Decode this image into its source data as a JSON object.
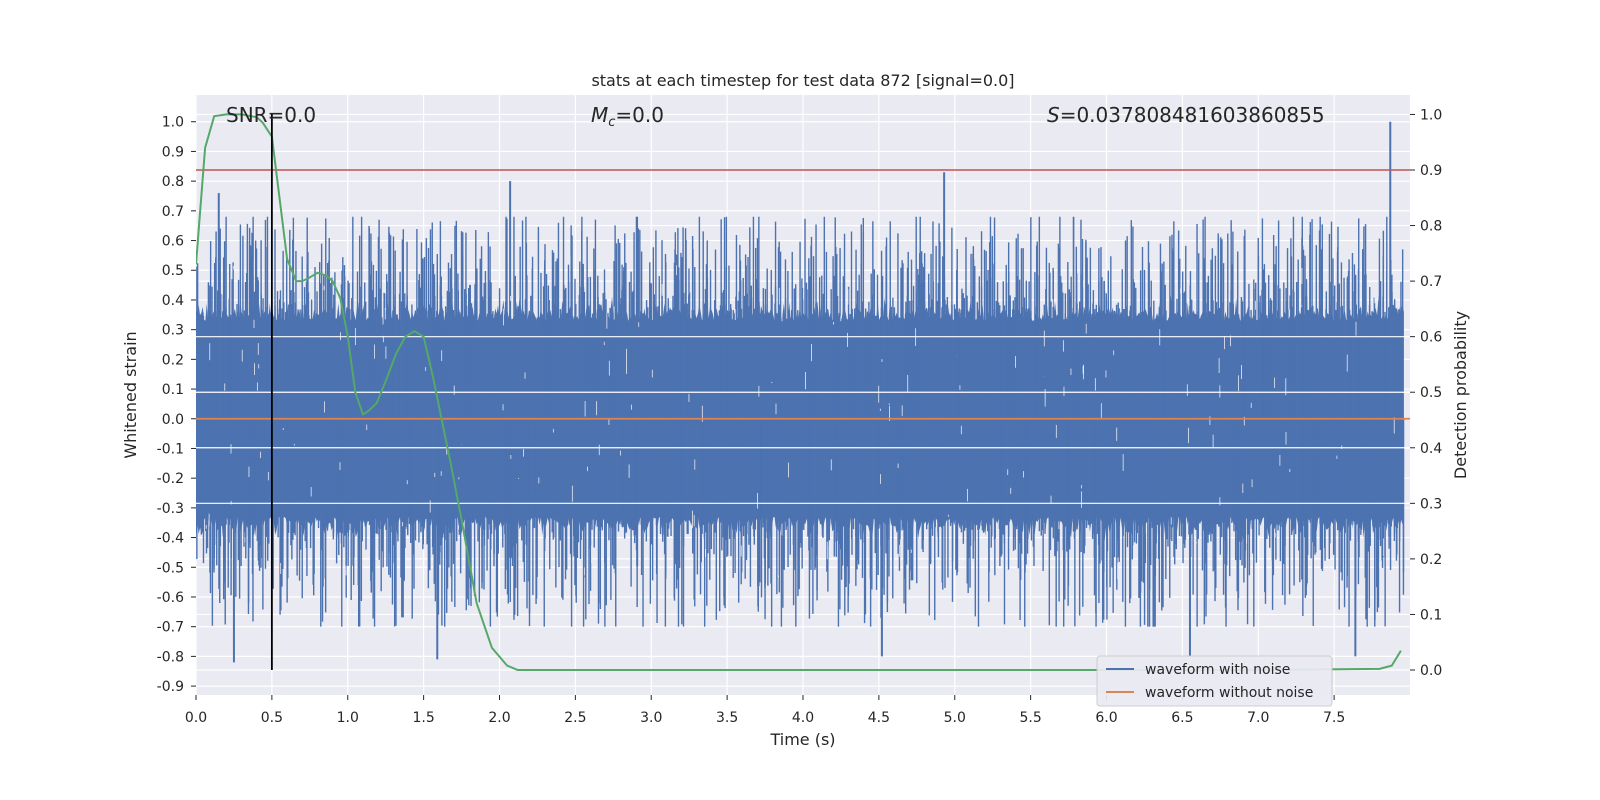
{
  "chart_data": {
    "type": "line",
    "title": "stats at each timestep for test data 872 [signal=0.0]",
    "xlabel": "Time (s)",
    "ylabel": "Whitened strain",
    "y2label": "Detection probability",
    "xlim": [
      0.0,
      8.0
    ],
    "ylim": [
      -0.93,
      1.09
    ],
    "y2lim": [
      -0.045,
      1.035
    ],
    "xticks": [
      "0.0",
      "0.5",
      "1.0",
      "1.5",
      "2.0",
      "2.5",
      "3.0",
      "3.5",
      "4.0",
      "4.5",
      "5.0",
      "5.5",
      "6.0",
      "6.5",
      "7.0",
      "7.5"
    ],
    "yticks": [
      "1.0",
      "0.9",
      "0.8",
      "0.7",
      "0.6",
      "0.5",
      "0.4",
      "0.3",
      "0.2",
      "0.1",
      "0.0",
      "-0.1",
      "-0.2",
      "-0.3",
      "-0.4",
      "-0.5",
      "-0.6",
      "-0.7",
      "-0.8",
      "-0.9"
    ],
    "y2ticks": [
      "1.0",
      "0.9",
      "0.8",
      "0.7",
      "0.6",
      "0.5",
      "0.4",
      "0.3",
      "0.2",
      "0.1",
      "0.0"
    ],
    "annotations": {
      "snr": "SNR=0.0",
      "mc": "=0.0",
      "mc_symbol": "M",
      "mc_sub": "c",
      "s": "=0.037808481603860855",
      "s_symbol": "S"
    },
    "grid": true,
    "legend_position": "lower-right",
    "colors": {
      "noise": "#4c72b0",
      "clean": "#dd8452",
      "prob": "#55a868",
      "threshold": "#c44e52",
      "marker": "#000000",
      "background": "#eaeaf2",
      "grid": "#ffffff"
    },
    "series": [
      {
        "name": "waveform with noise",
        "noise_band": {
          "typical_amplitude": 0.33,
          "y_max": 1.0,
          "y_min": -0.82
        },
        "peaks": [
          {
            "x": 0.15,
            "y": 0.76
          },
          {
            "x": 0.25,
            "y": -0.82
          },
          {
            "x": 2.07,
            "y": 0.8
          },
          {
            "x": 1.59,
            "y": -0.81
          },
          {
            "x": 4.93,
            "y": 0.83
          },
          {
            "x": 4.52,
            "y": -0.8
          },
          {
            "x": 7.87,
            "y": 1.0
          },
          {
            "x": 6.55,
            "y": -0.8
          },
          {
            "x": 7.64,
            "y": -0.8
          }
        ]
      },
      {
        "name": "waveform without noise",
        "x": [
          0.0,
          8.0
        ],
        "y": [
          0.0,
          0.0
        ]
      },
      {
        "name": "",
        "axis": "right",
        "x": [
          0.0,
          0.06,
          0.12,
          0.2,
          0.3,
          0.4,
          0.44,
          0.5,
          0.55,
          0.6,
          0.66,
          0.7,
          0.74,
          0.8,
          0.86,
          0.9,
          0.95,
          1.0,
          1.05,
          1.1,
          1.13,
          1.19,
          1.25,
          1.32,
          1.38,
          1.44,
          1.5,
          1.56,
          1.62,
          1.68,
          1.75,
          1.85,
          1.95,
          2.05,
          2.12,
          2.2,
          3.0,
          5.0,
          7.0,
          7.8,
          7.88,
          7.94
        ],
        "y": [
          0.73,
          0.94,
          0.997,
          1.0,
          1.0,
          0.995,
          0.985,
          0.96,
          0.85,
          0.74,
          0.7,
          0.7,
          0.705,
          0.715,
          0.71,
          0.7,
          0.67,
          0.6,
          0.5,
          0.46,
          0.465,
          0.48,
          0.52,
          0.57,
          0.6,
          0.61,
          0.6,
          0.53,
          0.45,
          0.37,
          0.27,
          0.12,
          0.04,
          0.008,
          0.0,
          0.0,
          0.0,
          0.0,
          0.0,
          0.002,
          0.008,
          0.035
        ]
      }
    ],
    "threshold_line": {
      "axis": "right",
      "y": 0.9
    },
    "marker_line": {
      "x": 0.5,
      "y_from": 0.0,
      "y_to": 1.0,
      "axis": "right"
    }
  }
}
